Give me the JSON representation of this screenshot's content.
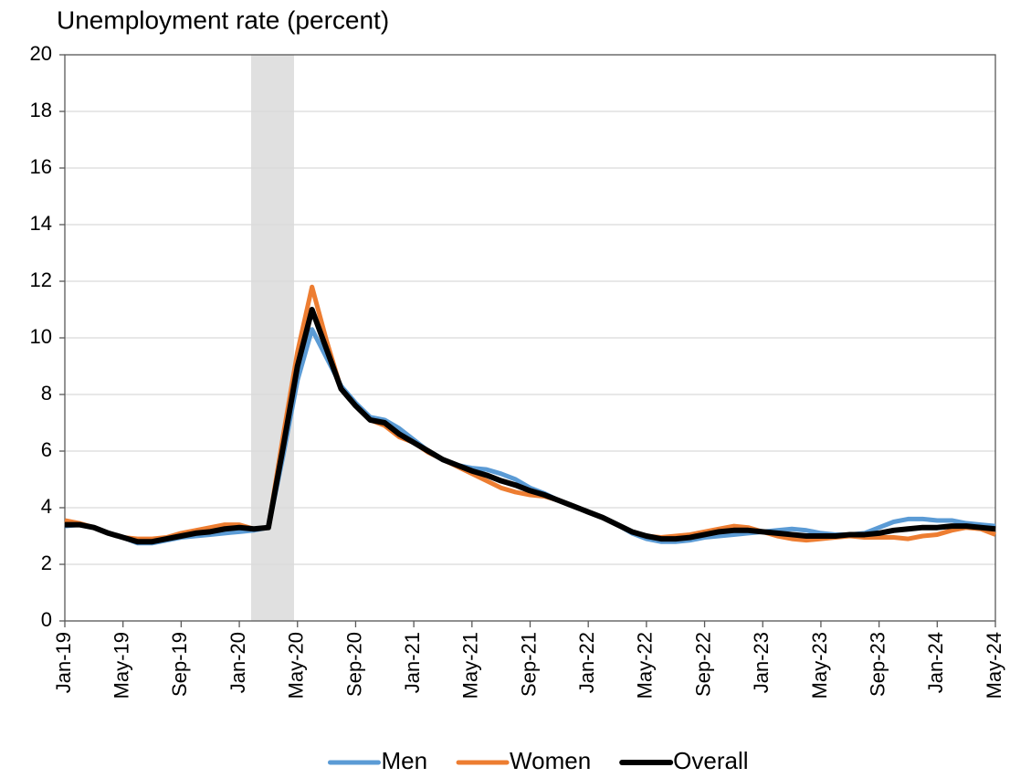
{
  "chart_data": {
    "type": "line",
    "title": "Unemployment rate (percent)",
    "categories": [
      "Jan-19",
      null,
      null,
      null,
      "May-19",
      null,
      null,
      null,
      "Sep-19",
      null,
      null,
      null,
      "Jan-20",
      null,
      null,
      null,
      "May-20",
      null,
      null,
      null,
      "Sep-20",
      null,
      null,
      null,
      "Jan-21",
      null,
      null,
      null,
      "May-21",
      null,
      null,
      null,
      "Sep-21",
      null,
      null,
      null,
      "Jan-22",
      null,
      null,
      null,
      "May-22",
      null,
      null,
      null,
      "Sep-22",
      null,
      null,
      null,
      "Jan-23",
      null,
      null,
      null,
      "May-23",
      null,
      null,
      null,
      "Sep-23",
      null,
      null,
      null,
      "Jan-24",
      null,
      null,
      null,
      "May-24"
    ],
    "series": [
      {
        "name": "Men",
        "color": "#5b9bd5",
        "values": [
          3.35,
          3.4,
          3.3,
          3.1,
          2.95,
          2.75,
          2.75,
          2.85,
          2.95,
          3.0,
          3.05,
          3.1,
          3.15,
          3.2,
          3.3,
          5.8,
          8.5,
          10.3,
          9.3,
          8.3,
          7.7,
          7.2,
          7.1,
          6.8,
          6.4,
          6.0,
          5.7,
          5.5,
          5.4,
          5.35,
          5.2,
          5.0,
          4.7,
          4.5,
          4.25,
          4.05,
          3.85,
          3.65,
          3.4,
          3.1,
          2.9,
          2.8,
          2.8,
          2.85,
          2.95,
          3.0,
          3.05,
          3.1,
          3.15,
          3.2,
          3.25,
          3.2,
          3.1,
          3.05,
          3.05,
          3.1,
          3.3,
          3.5,
          3.6,
          3.6,
          3.55,
          3.55,
          3.45,
          3.4,
          3.35
        ]
      },
      {
        "name": "Women",
        "color": "#ed7d31",
        "values": [
          3.55,
          3.45,
          3.3,
          3.1,
          2.95,
          2.9,
          2.9,
          2.95,
          3.1,
          3.2,
          3.3,
          3.4,
          3.4,
          3.25,
          3.3,
          6.5,
          9.5,
          11.8,
          9.9,
          8.2,
          7.6,
          7.1,
          6.9,
          6.5,
          6.3,
          5.95,
          5.7,
          5.45,
          5.2,
          4.95,
          4.7,
          4.55,
          4.45,
          4.4,
          4.25,
          4.05,
          3.85,
          3.65,
          3.4,
          3.15,
          3.0,
          2.95,
          3.0,
          3.05,
          3.15,
          3.25,
          3.35,
          3.3,
          3.15,
          3.0,
          2.9,
          2.85,
          2.9,
          2.95,
          3.0,
          2.95,
          2.95,
          2.95,
          2.9,
          3.0,
          3.05,
          3.2,
          3.3,
          3.25,
          3.05
        ]
      },
      {
        "name": "Overall",
        "color": "#000000",
        "values": [
          3.4,
          3.4,
          3.3,
          3.1,
          2.95,
          2.8,
          2.8,
          2.9,
          3.0,
          3.1,
          3.15,
          3.25,
          3.3,
          3.25,
          3.3,
          6.1,
          9.0,
          11.0,
          9.6,
          8.2,
          7.6,
          7.1,
          7.0,
          6.6,
          6.3,
          6.0,
          5.7,
          5.5,
          5.3,
          5.15,
          4.95,
          4.8,
          4.6,
          4.45,
          4.25,
          4.05,
          3.85,
          3.65,
          3.4,
          3.15,
          3.0,
          2.9,
          2.9,
          2.95,
          3.05,
          3.15,
          3.2,
          3.2,
          3.15,
          3.1,
          3.05,
          3.0,
          3.0,
          3.0,
          3.05,
          3.05,
          3.1,
          3.2,
          3.25,
          3.3,
          3.3,
          3.35,
          3.35,
          3.3,
          3.25
        ]
      }
    ],
    "ylim": [
      0,
      20
    ],
    "yticks": [
      0,
      2,
      4,
      6,
      8,
      10,
      12,
      14,
      16,
      18,
      20
    ],
    "grid": true,
    "legend": "bottom"
  }
}
